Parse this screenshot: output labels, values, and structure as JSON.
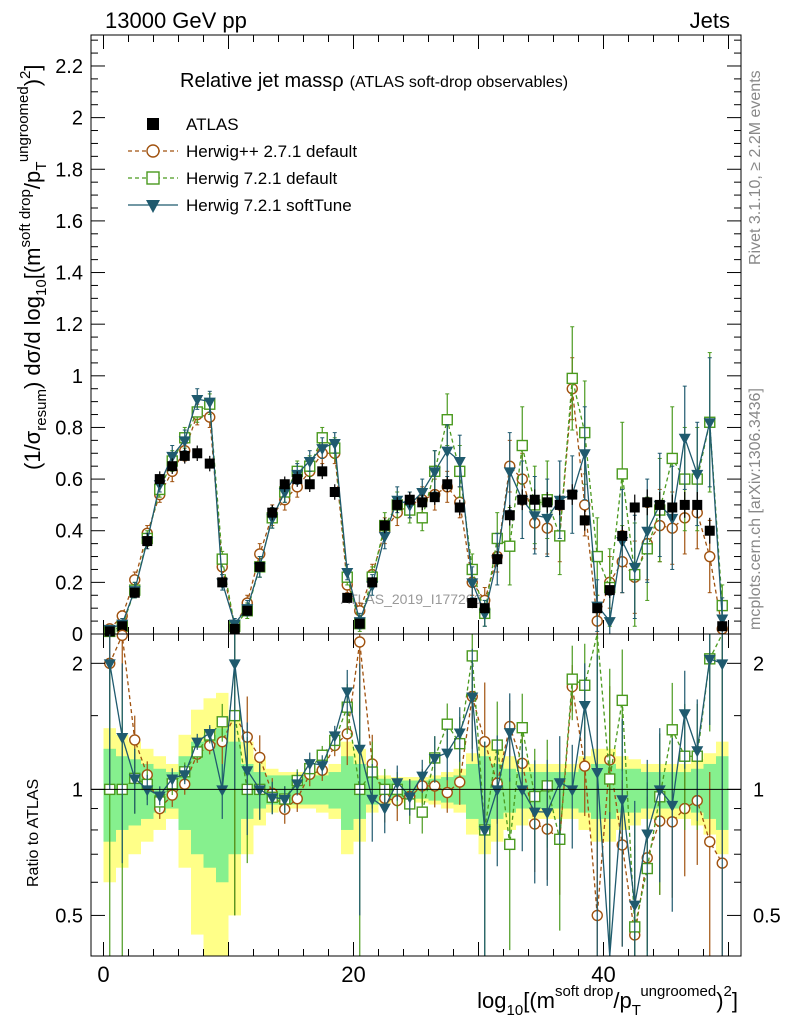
{
  "header": {
    "left": "13000 GeV pp",
    "right": "Jets"
  },
  "side_text": {
    "rivet": "Rivet 3.1.10, ≥ 2.2M events",
    "mcplots": "mcplots.cern.ch [arXiv:1306.3436]"
  },
  "watermark": "ATLAS_2019_I1772062",
  "colors": {
    "atlas": "#000000",
    "herwigpp": "#a0520f",
    "herwig721": "#4a9a1e",
    "softtune": "#1f5a6e",
    "band_inner": "#86f08e",
    "band_outer": "#ffff88"
  },
  "chart_data": {
    "type": "scatter",
    "title": "Relative jet massρ",
    "title_suffix": "(ATLAS soft-drop observables)",
    "xlabel": "log10[(m^soft drop/pT^ungroomed)^2]",
    "xlabel_parts": {
      "main": "log",
      "sub": "10",
      "open": "[(m",
      "sup1": "soft drop",
      "mid": "/p",
      "sub2": "T",
      "sup2": "ungroomed",
      "close": ")",
      "sup3": "2",
      "end": "]"
    },
    "ylabel": "(1/σresum) dσ/d log10[(m^soft drop/pT^ungroomed)^2]",
    "ylabel_parts": {
      "a": "(1/σ",
      "sub1": "resum",
      "b": ") dσ/d log",
      "sub2": "10",
      "c": "[(m",
      "sup1": "soft drop",
      "d": "/p",
      "sub3": "T",
      "sup2": "ungroomed",
      "e": ")",
      "sup3": "2",
      "f": "]"
    },
    "ratio_ylabel": "Ratio to ATLAS",
    "xlim": [
      -1,
      51
    ],
    "ylim": [
      0,
      2.32
    ],
    "ratio_ylim": [
      0.4,
      2.35
    ],
    "ratio_log": true,
    "x_ticks": [
      "0",
      "20",
      "40"
    ],
    "x_tick_values": [
      0,
      20,
      40
    ],
    "y_ticks": [
      "0",
      "0.2",
      "0.4",
      "0.6",
      "0.8",
      "1",
      "1.2",
      "1.4",
      "1.6",
      "1.8",
      "2",
      "2.2"
    ],
    "y_tick_values": [
      0,
      0.2,
      0.4,
      0.6,
      0.8,
      1,
      1.2,
      1.4,
      1.6,
      1.8,
      2,
      2.2
    ],
    "ratio_ticks": [
      "0.5",
      "1",
      "2"
    ],
    "ratio_tick_values": [
      0.5,
      1,
      2
    ],
    "legend_position": "top-left",
    "x": [
      0.5,
      1.5,
      2.5,
      3.5,
      4.5,
      5.5,
      6.5,
      7.5,
      8.5,
      9.5,
      10.5,
      11.5,
      12.5,
      13.5,
      14.5,
      15.5,
      16.5,
      17.5,
      18.5,
      19.5,
      20.5,
      21.5,
      22.5,
      23.5,
      24.5,
      25.5,
      26.5,
      27.5,
      28.5,
      29.5,
      30.5,
      31.5,
      32.5,
      33.5,
      34.5,
      35.5,
      36.5,
      37.5,
      38.5,
      39.5,
      40.5,
      41.5,
      42.5,
      43.5,
      44.5,
      45.5,
      46.5,
      47.5,
      48.5,
      49.5
    ],
    "series": [
      {
        "name": "ATLAS",
        "values": [
          0.01,
          0.03,
          0.16,
          0.36,
          0.6,
          0.65,
          0.69,
          0.7,
          0.66,
          0.2,
          0.02,
          0.09,
          0.26,
          0.47,
          0.58,
          0.6,
          0.58,
          0.63,
          0.55,
          0.14,
          0.04,
          0.2,
          0.42,
          0.5,
          0.52,
          0.51,
          0.53,
          0.58,
          0.49,
          0.12,
          0.1,
          0.29,
          0.46,
          0.52,
          0.52,
          0.51,
          0.5,
          0.54,
          0.44,
          0.1,
          0.17,
          0.38,
          0.49,
          0.51,
          0.5,
          0.49,
          0.5,
          0.5,
          0.4,
          0.03
        ],
        "errors": [
          0.01,
          0.01,
          0.02,
          0.03,
          0.03,
          0.03,
          0.03,
          0.03,
          0.03,
          0.02,
          0.01,
          0.01,
          0.02,
          0.03,
          0.03,
          0.03,
          0.03,
          0.03,
          0.03,
          0.02,
          0.01,
          0.02,
          0.03,
          0.03,
          0.03,
          0.03,
          0.03,
          0.03,
          0.03,
          0.02,
          0.02,
          0.03,
          0.04,
          0.04,
          0.04,
          0.04,
          0.04,
          0.04,
          0.04,
          0.02,
          0.03,
          0.04,
          0.05,
          0.05,
          0.05,
          0.05,
          0.05,
          0.05,
          0.05,
          0.02
        ]
      },
      {
        "name": "Herwig++ 2.7.1 default",
        "values": [
          0.02,
          0.07,
          0.21,
          0.39,
          0.54,
          0.63,
          0.71,
          0.85,
          0.84,
          0.26,
          0.03,
          0.12,
          0.31,
          0.46,
          0.52,
          0.57,
          0.63,
          0.7,
          0.7,
          0.19,
          0.09,
          0.23,
          0.4,
          0.47,
          0.5,
          0.52,
          0.54,
          0.57,
          0.51,
          0.2,
          0.13,
          0.3,
          0.65,
          0.6,
          0.43,
          0.41,
          0.38,
          0.95,
          0.5,
          0.05,
          0.2,
          0.28,
          0.22,
          0.35,
          0.42,
          0.41,
          0.45,
          0.47,
          0.3,
          0.02
        ],
        "errors": [
          0.01,
          0.02,
          0.03,
          0.03,
          0.03,
          0.04,
          0.04,
          0.04,
          0.04,
          0.03,
          0.02,
          0.03,
          0.04,
          0.04,
          0.04,
          0.04,
          0.04,
          0.04,
          0.04,
          0.03,
          0.03,
          0.04,
          0.05,
          0.05,
          0.05,
          0.05,
          0.06,
          0.06,
          0.06,
          0.05,
          0.05,
          0.06,
          0.1,
          0.1,
          0.1,
          0.1,
          0.1,
          0.12,
          0.12,
          0.1,
          0.1,
          0.12,
          0.14,
          0.14,
          0.14,
          0.14,
          0.14,
          0.14,
          0.14,
          0.05
        ]
      },
      {
        "name": "Herwig 7.2.1 default",
        "values": [
          0.01,
          0.03,
          0.17,
          0.37,
          0.56,
          0.67,
          0.76,
          0.86,
          0.89,
          0.29,
          0.03,
          0.09,
          0.26,
          0.45,
          0.55,
          0.63,
          0.65,
          0.76,
          0.72,
          0.22,
          0.04,
          0.22,
          0.42,
          0.5,
          0.48,
          0.45,
          0.63,
          0.83,
          0.63,
          0.25,
          0.08,
          0.37,
          0.34,
          0.73,
          0.5,
          0.52,
          0.38,
          0.99,
          0.78,
          0.3,
          0.18,
          0.62,
          0.23,
          0.33,
          0.48,
          0.68,
          0.6,
          0.6,
          0.82,
          0.11
        ],
        "errors": [
          0.01,
          0.02,
          0.03,
          0.03,
          0.03,
          0.04,
          0.04,
          0.04,
          0.04,
          0.03,
          0.02,
          0.03,
          0.04,
          0.04,
          0.04,
          0.04,
          0.04,
          0.04,
          0.04,
          0.03,
          0.03,
          0.04,
          0.05,
          0.05,
          0.05,
          0.05,
          0.08,
          0.1,
          0.1,
          0.06,
          0.05,
          0.1,
          0.15,
          0.15,
          0.15,
          0.15,
          0.15,
          0.2,
          0.2,
          0.15,
          0.15,
          0.2,
          0.2,
          0.2,
          0.2,
          0.2,
          0.2,
          0.2,
          0.27,
          0.08
        ]
      },
      {
        "name": "Herwig 7.2.1 softTune",
        "values": [
          0.02,
          0.04,
          0.17,
          0.36,
          0.58,
          0.69,
          0.75,
          0.91,
          0.9,
          0.2,
          0.04,
          0.1,
          0.26,
          0.45,
          0.55,
          0.62,
          0.67,
          0.72,
          0.74,
          0.24,
          0.05,
          0.19,
          0.38,
          0.52,
          0.5,
          0.55,
          0.63,
          0.71,
          0.67,
          0.2,
          0.08,
          0.29,
          0.63,
          0.52,
          0.46,
          0.45,
          0.52,
          0.54,
          0.7,
          0.11,
          0.05,
          0.36,
          0.26,
          0.4,
          0.5,
          0.45,
          0.76,
          0.62,
          0.82,
          0.06
        ],
        "errors": [
          0.01,
          0.02,
          0.03,
          0.03,
          0.03,
          0.04,
          0.04,
          0.04,
          0.04,
          0.03,
          0.02,
          0.03,
          0.04,
          0.04,
          0.04,
          0.04,
          0.04,
          0.04,
          0.04,
          0.03,
          0.03,
          0.04,
          0.05,
          0.05,
          0.05,
          0.05,
          0.08,
          0.1,
          0.1,
          0.06,
          0.05,
          0.1,
          0.15,
          0.15,
          0.15,
          0.15,
          0.15,
          0.15,
          0.18,
          0.1,
          0.1,
          0.2,
          0.2,
          0.2,
          0.2,
          0.2,
          0.2,
          0.2,
          0.25,
          0.08
        ]
      }
    ],
    "ratio_band": {
      "inner_half": [
        0.25,
        0.2,
        0.18,
        0.15,
        0.12,
        0.1,
        0.2,
        0.3,
        0.35,
        0.4,
        0.3,
        0.15,
        0.1,
        0.08,
        0.08,
        0.08,
        0.08,
        0.08,
        0.1,
        0.2,
        0.15,
        0.08,
        0.06,
        0.05,
        0.05,
        0.05,
        0.06,
        0.07,
        0.08,
        0.15,
        0.2,
        0.15,
        0.12,
        0.1,
        0.1,
        0.1,
        0.1,
        0.1,
        0.12,
        0.15,
        0.15,
        0.12,
        0.12,
        0.1,
        0.1,
        0.1,
        0.1,
        0.12,
        0.15,
        0.2
      ],
      "outer_half": [
        0.4,
        0.35,
        0.3,
        0.25,
        0.2,
        0.15,
        0.35,
        0.55,
        0.65,
        0.7,
        0.5,
        0.3,
        0.18,
        0.12,
        0.1,
        0.1,
        0.1,
        0.12,
        0.15,
        0.3,
        0.25,
        0.12,
        0.08,
        0.07,
        0.07,
        0.07,
        0.08,
        0.1,
        0.12,
        0.22,
        0.3,
        0.25,
        0.2,
        0.18,
        0.15,
        0.15,
        0.15,
        0.15,
        0.2,
        0.25,
        0.25,
        0.2,
        0.18,
        0.15,
        0.15,
        0.15,
        0.15,
        0.18,
        0.22,
        0.3
      ]
    }
  }
}
